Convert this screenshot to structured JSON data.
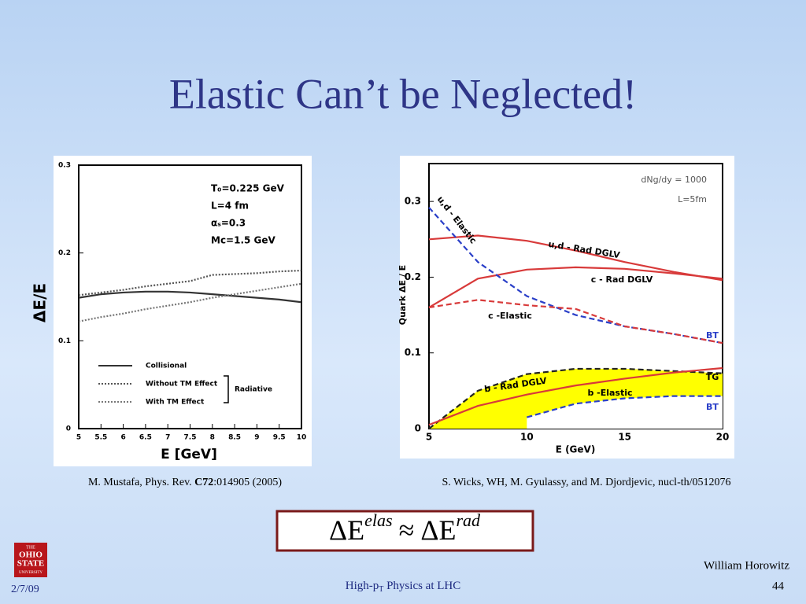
{
  "title": "Elastic Can’t be Neglected!",
  "captions": [
    [
      "M. Mustafa, Phys. Rev. ",
      "C72",
      ":014905 (2005)"
    ],
    [
      "S. Wicks, WH, M. Gyulassy, and M. Djordjevic, nucl-th/0512076"
    ]
  ],
  "formula": {
    "lhs": "ΔE",
    "lhs_sup": "elas",
    "op": "≈",
    "rhs": "ΔE",
    "rhs_sup": "rad"
  },
  "footer": {
    "date": "2/7/09",
    "talk": [
      "High-p",
      "T",
      " Physics at LHC"
    ],
    "author": "William Horowitz",
    "page": "44",
    "logo": [
      "THE",
      "OHIO",
      "STATE",
      "UNIVERSITY"
    ]
  },
  "chart_data": [
    {
      "type": "line",
      "x_label": "E [GeV]",
      "y_label": "ΔE/E",
      "annotations": [
        "T₀=0.225 GeV",
        "L=4 fm",
        "αₛ=0.3",
        "Mc=1.5 GeV"
      ],
      "bracket_label": "Radiative",
      "x": [
        5,
        5.5,
        6,
        6.5,
        7,
        7.5,
        8,
        8.5,
        9,
        9.5,
        10
      ],
      "xlim": [
        5,
        10
      ],
      "xticks": [
        5,
        5.5,
        6,
        6.5,
        7,
        7.5,
        8,
        8.5,
        9,
        9.5,
        10
      ],
      "ylim": [
        0,
        0.3
      ],
      "yticks": [
        0,
        0.1,
        0.2,
        0.3
      ],
      "series": [
        {
          "name": "Collisional",
          "color": "#333333",
          "line_style": "solid",
          "values": [
            0.149,
            0.153,
            0.155,
            0.156,
            0.156,
            0.155,
            0.153,
            0.151,
            0.149,
            0.147,
            0.144
          ]
        },
        {
          "name": "Without TM Effect",
          "color": "#555555",
          "line_style": "dotted",
          "values": [
            0.152,
            0.155,
            0.158,
            0.162,
            0.165,
            0.168,
            0.175,
            0.176,
            0.177,
            0.179,
            0.18
          ]
        },
        {
          "name": "With TM Effect",
          "color": "#777777",
          "line_style": "dotted",
          "values": [
            0.122,
            0.127,
            0.131,
            0.136,
            0.14,
            0.144,
            0.149,
            0.153,
            0.157,
            0.161,
            0.165
          ]
        }
      ]
    },
    {
      "type": "line",
      "x_label": "E (GeV)",
      "y_label": "Quark ΔE / E",
      "annotations": [
        "dNg/dy = 1000",
        "L=5fm"
      ],
      "x": [
        5,
        7.5,
        10,
        12.5,
        15,
        17.5,
        20
      ],
      "xlim": [
        5,
        20
      ],
      "xticks": [
        5,
        10,
        15,
        20
      ],
      "ylim": [
        0,
        0.35
      ],
      "yticks": [
        0,
        0.1,
        0.2,
        0.3
      ],
      "series": [
        {
          "name": "u,d - Rad DGLV",
          "color": "#d83a3a",
          "line_style": "solid",
          "values": [
            0.25,
            0.255,
            0.248,
            0.235,
            0.22,
            0.207,
            0.196
          ]
        },
        {
          "name": "c - Rad DGLV",
          "color": "#d83a3a",
          "line_style": "solid",
          "values": [
            0.16,
            0.198,
            0.21,
            0.213,
            0.211,
            0.205,
            0.198
          ]
        },
        {
          "name": "u,d - Elastic",
          "end_label": "BT",
          "color": "#2a3fc8",
          "line_style": "dashed",
          "values": [
            0.292,
            0.22,
            0.175,
            0.15,
            0.135,
            0.125,
            0.113
          ]
        },
        {
          "name": "c -Elastic",
          "color": "#d83a3a",
          "line_style": "dashed",
          "values": [
            0.16,
            0.17,
            0.163,
            0.158,
            0.135,
            0.125,
            0.113
          ]
        },
        {
          "name": "b -Elastic",
          "end_label": "TG",
          "color": "#222222",
          "line_style": "dashed",
          "fill": "#ffff00",
          "values": [
            0.0,
            0.05,
            0.072,
            0.079,
            0.079,
            0.076,
            0.073
          ]
        },
        {
          "end_label": "BT",
          "color": "#2a3fc8",
          "line_style": "dashed",
          "fill": "#ffffff",
          "values": [
            null,
            null,
            0.015,
            0.033,
            0.04,
            0.043,
            0.043
          ]
        },
        {
          "name": "b - Rad DGLV",
          "color": "#d83a3a",
          "line_style": "solid",
          "values": [
            0.005,
            0.03,
            0.045,
            0.057,
            0.066,
            0.074,
            0.08
          ]
        }
      ]
    }
  ]
}
